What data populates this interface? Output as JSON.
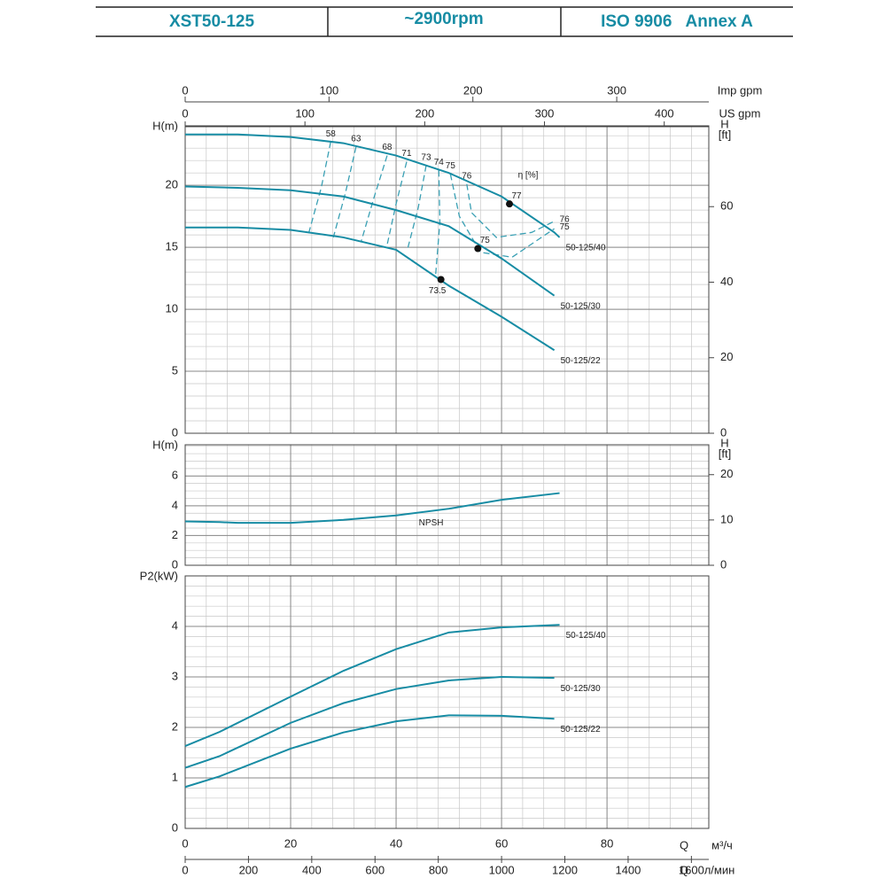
{
  "header": {
    "cells": [
      "XST50-125",
      "~2900rpm",
      "ISO 9906   Annex A"
    ]
  },
  "chart_data": [
    {
      "type": "line",
      "ylabel": "H(m)",
      "y2label": [
        "H",
        "[ft]"
      ],
      "xlim": [
        0,
        99.3
      ],
      "xticks": [
        0,
        20,
        40,
        60,
        80
      ],
      "ylim": [
        0,
        24.8
      ],
      "yticks": [
        0,
        5,
        10,
        15,
        20
      ],
      "y2lim": [
        0,
        81.4
      ],
      "y2ticks": [
        0,
        20,
        40,
        60
      ],
      "minor_step": {
        "x": 4,
        "y": 1
      },
      "grid": true,
      "top_axes": [
        {
          "label": "Imp gpm",
          "lim": [
            0,
            364
          ],
          "ticks": [
            0,
            100,
            200,
            300
          ]
        },
        {
          "label": "US gpm",
          "lim": [
            0,
            437.2
          ],
          "ticks": [
            0,
            100,
            200,
            300,
            400
          ]
        }
      ],
      "series": [
        {
          "name": "50-125/40",
          "color": "#178ca4",
          "x": [
            0,
            10,
            20,
            30,
            40,
            50,
            60,
            70,
            71
          ],
          "values": [
            24.1,
            24.1,
            23.9,
            23.4,
            22.4,
            21.0,
            19.1,
            16.2,
            15.8
          ]
        },
        {
          "name": "50-125/30",
          "color": "#178ca4",
          "x": [
            0,
            10,
            20,
            30,
            40,
            50,
            60,
            70
          ],
          "values": [
            19.9,
            19.8,
            19.6,
            19.1,
            18.0,
            16.7,
            14.1,
            11.1
          ]
        },
        {
          "name": "50-125/22",
          "color": "#178ca4",
          "x": [
            0,
            10,
            20,
            30,
            40,
            50,
            60,
            70
          ],
          "values": [
            16.6,
            16.6,
            16.4,
            15.8,
            14.8,
            11.9,
            9.4,
            6.7
          ]
        }
      ],
      "efficiency_title": "η [%]",
      "efficiency_lines": [
        {
          "label": 58,
          "x": [
            27.6,
            25.8,
            23.4
          ],
          "values": [
            23.5,
            19.8,
            16.1
          ]
        },
        {
          "label": 63,
          "x": [
            32.4,
            30.4,
            28.1
          ],
          "values": [
            23.1,
            19.4,
            15.8
          ]
        },
        {
          "label": 68,
          "x": [
            38.3,
            35.8,
            33.4
          ],
          "values": [
            22.4,
            19.0,
            15.5
          ]
        },
        {
          "label": 71,
          "x": [
            42.0,
            40.0,
            38.3
          ],
          "values": [
            21.9,
            18.5,
            15.2
          ]
        },
        {
          "label": 73,
          "x": [
            45.7,
            44.2,
            42.2
          ],
          "values": [
            21.6,
            18.2,
            14.9
          ]
        },
        {
          "label": 74,
          "x": [
            48.1,
            48.3,
            47.5
          ],
          "values": [
            21.2,
            17.0,
            12.8
          ]
        },
        {
          "label": 75,
          "x": [
            50.3,
            52,
            56,
            62,
            70
          ],
          "values": [
            20.9,
            17.5,
            14.6,
            14.2,
            16.5
          ],
          "end_label": true
        },
        {
          "label": 76,
          "x": [
            53.4,
            54.3,
            59,
            65.7,
            70
          ],
          "values": [
            20.1,
            17.8,
            15.8,
            16.2,
            17.1
          ],
          "end_label": true
        }
      ],
      "best_points": [
        {
          "label": 77,
          "x": 61.5,
          "value": 18.5
        },
        {
          "label": 75,
          "x": 55.5,
          "value": 14.9
        },
        {
          "label": 73.5,
          "x": 48.5,
          "value": 12.4
        }
      ]
    },
    {
      "type": "line",
      "ylabel": "H(m)",
      "y2label": [
        "H",
        "[ft]"
      ],
      "xlim": [
        0,
        99.3
      ],
      "xticks": [
        0,
        20,
        40,
        60,
        80
      ],
      "ylim": [
        0,
        8.1
      ],
      "yticks": [
        0,
        2,
        4,
        6
      ],
      "y2lim": [
        0,
        26.6
      ],
      "y2ticks": [
        0,
        10,
        20
      ],
      "minor_step": {
        "x": 4,
        "y": 0.5
      },
      "grid": true,
      "series": [
        {
          "name": "NPSH",
          "color": "#178ca4",
          "x": [
            0,
            6.6,
            10,
            20,
            30,
            40,
            50,
            60,
            71
          ],
          "values": [
            2.95,
            2.9,
            2.85,
            2.85,
            3.05,
            3.35,
            3.8,
            4.4,
            4.85
          ]
        }
      ]
    },
    {
      "type": "line",
      "ylabel": "P2(kW)",
      "xlim": [
        0,
        99.3
      ],
      "xticks": [
        0,
        20,
        40,
        60,
        80
      ],
      "ylim": [
        0,
        5
      ],
      "yticks": [
        0,
        1,
        2,
        3,
        4
      ],
      "minor_step": {
        "x": 4,
        "y": 0.2
      },
      "grid": true,
      "xsymbol": "Q",
      "xlabel": "м³/ч",
      "bottom_axis": {
        "symbol": "Q",
        "label": "л/мин",
        "lim": [
          0,
          1655
        ],
        "ticks": [
          0,
          200,
          400,
          600,
          800,
          1000,
          1200,
          1400,
          1600
        ]
      },
      "series": [
        {
          "name": "50-125/40",
          "color": "#178ca4",
          "x": [
            0,
            6.5,
            20,
            30,
            40,
            50,
            60,
            71
          ],
          "values": [
            1.63,
            1.91,
            2.61,
            3.12,
            3.55,
            3.88,
            3.98,
            4.03
          ]
        },
        {
          "name": "50-125/30",
          "color": "#178ca4",
          "x": [
            0,
            6.5,
            20,
            30,
            40,
            50,
            60,
            70
          ],
          "values": [
            1.2,
            1.43,
            2.09,
            2.48,
            2.76,
            2.93,
            3.0,
            2.98
          ]
        },
        {
          "name": "50-125/22",
          "color": "#178ca4",
          "x": [
            0,
            6.5,
            20,
            30,
            40,
            50,
            60,
            70
          ],
          "values": [
            0.82,
            1.03,
            1.58,
            1.9,
            2.12,
            2.24,
            2.23,
            2.17
          ]
        }
      ]
    }
  ]
}
